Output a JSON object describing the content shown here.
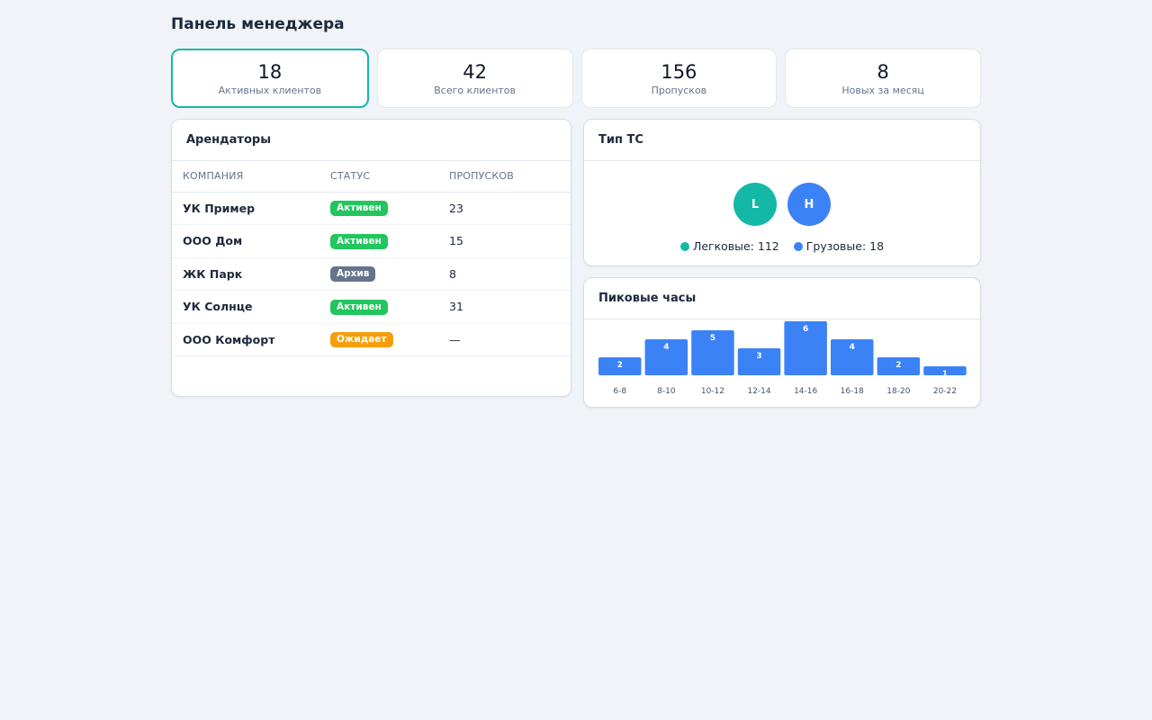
{
  "page": {
    "title": "Панель менеджера"
  },
  "stats": [
    {
      "value": "18",
      "label": "Активных клиентов"
    },
    {
      "value": "42",
      "label": "Всего клиентов"
    },
    {
      "value": "156",
      "label": "Пропусков"
    },
    {
      "value": "8",
      "label": "Новых за месяц"
    }
  ],
  "tenants": {
    "title": "Арендаторы",
    "columns": [
      "КОМПАНИЯ",
      "СТАТУС",
      "ПРОПУСКОВ"
    ],
    "rows": [
      {
        "company": "УК Пример",
        "status": "Активен",
        "passes": "23"
      },
      {
        "company": "ООО Дом",
        "status": "Активен",
        "passes": "15"
      },
      {
        "company": "ЖК Парк",
        "status": "Архив",
        "passes": "8"
      },
      {
        "company": "УК Солнце",
        "status": "Активен",
        "passes": "31"
      },
      {
        "company": "ООО Комфорт",
        "status": "Ожидает",
        "passes": "—"
      }
    ],
    "status_colors": {
      "Активен": "#22c55e",
      "Архив": "#64748b",
      "Ожидает": "#f59e0b"
    }
  },
  "vehicle": {
    "title": "Тип ТС",
    "bubbles": [
      {
        "letter": "L",
        "color": "#14b8a6"
      },
      {
        "letter": "H",
        "color": "#3b82f6"
      }
    ],
    "legend": [
      {
        "label": "Легковые: 112",
        "color": "#14b8a6"
      },
      {
        "label": "Грузовые: 18",
        "color": "#3b82f6"
      }
    ]
  },
  "peak": {
    "title": "Пиковые часы"
  },
  "chart_data": {
    "type": "bar",
    "categories": [
      "6-8",
      "8-10",
      "10-12",
      "12-14",
      "14-16",
      "16-18",
      "18-20",
      "20-22"
    ],
    "values": [
      2,
      4,
      5,
      3,
      6,
      4,
      2,
      1
    ],
    "title": "Пиковые часы",
    "xlabel": "",
    "ylabel": "",
    "ylim": [
      0,
      6
    ],
    "bar_color": "#3b82f6",
    "grid": false
  }
}
